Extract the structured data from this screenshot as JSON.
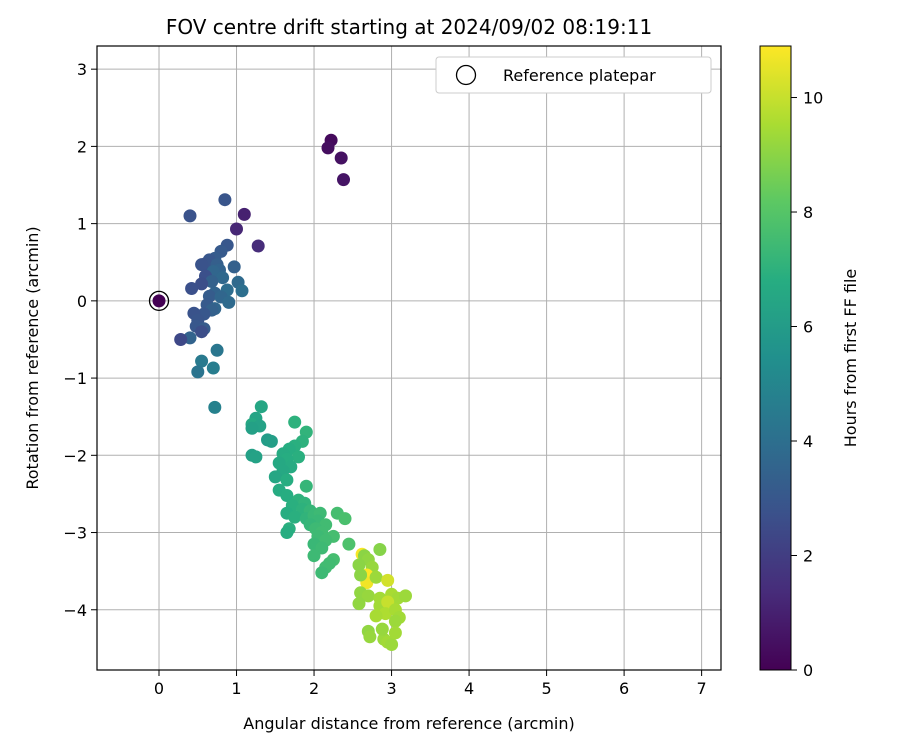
{
  "chart_data": {
    "type": "scatter",
    "title": "FOV centre drift starting at 2024/09/02 08:19:11",
    "xlabel": "Angular distance from reference (arcmin)",
    "ylabel": "Rotation from reference (arcmin)",
    "xlim": [
      -0.8,
      7.25
    ],
    "ylim": [
      -4.78,
      3.3
    ],
    "xticks": [
      0,
      1,
      2,
      3,
      4,
      5,
      6,
      7
    ],
    "yticks": [
      3,
      2,
      1,
      0,
      -1,
      -2,
      -3,
      -4
    ],
    "xtick_labels": [
      "0",
      "1",
      "2",
      "3",
      "4",
      "5",
      "6",
      "7"
    ],
    "ytick_labels": [
      "3",
      "2",
      "1",
      "0",
      "−1",
      "−2",
      "−3",
      "−4"
    ],
    "grid": true,
    "legend": {
      "label": "Reference platepar",
      "placement": "top-right"
    },
    "reference_point": {
      "x": 0.0,
      "y": 0.0,
      "hours": 0.0
    },
    "colorbar": {
      "label": "Hours from first FF file",
      "range": [
        0,
        10.9
      ],
      "ticks": [
        0,
        2,
        4,
        6,
        8,
        10
      ],
      "tick_labels": [
        "0",
        "2",
        "4",
        "6",
        "8",
        "10"
      ],
      "colormap": "viridis"
    },
    "points": [
      [
        2.22,
        2.08,
        0.3
      ],
      [
        2.18,
        1.98,
        0.4
      ],
      [
        2.35,
        1.85,
        0.5
      ],
      [
        2.38,
        1.57,
        0.6
      ],
      [
        1.1,
        1.12,
        1.0
      ],
      [
        1.0,
        0.93,
        1.2
      ],
      [
        1.28,
        0.71,
        1.4
      ],
      [
        0.4,
        1.1,
        2.8
      ],
      [
        0.85,
        1.31,
        2.9
      ],
      [
        0.88,
        0.72,
        3.0
      ],
      [
        0.8,
        0.64,
        3.1
      ],
      [
        0.72,
        0.55,
        3.2
      ],
      [
        0.65,
        0.53,
        3.0
      ],
      [
        0.6,
        0.48,
        2.9
      ],
      [
        0.55,
        0.47,
        2.8
      ],
      [
        0.75,
        0.47,
        3.3
      ],
      [
        0.97,
        0.44,
        3.4
      ],
      [
        0.78,
        0.4,
        3.5
      ],
      [
        0.7,
        0.38,
        3.6
      ],
      [
        0.6,
        0.32,
        2.7
      ],
      [
        0.82,
        0.3,
        3.7
      ],
      [
        0.68,
        0.25,
        3.4
      ],
      [
        1.02,
        0.24,
        3.8
      ],
      [
        0.55,
        0.22,
        2.6
      ],
      [
        0.42,
        0.16,
        2.7
      ],
      [
        0.88,
        0.14,
        3.9
      ],
      [
        1.07,
        0.13,
        4.0
      ],
      [
        0.72,
        0.1,
        3.5
      ],
      [
        0.65,
        0.06,
        3.2
      ],
      [
        0.8,
        0.05,
        3.6
      ],
      [
        0.9,
        -0.02,
        3.8
      ],
      [
        0.62,
        -0.05,
        3.1
      ],
      [
        0.72,
        -0.1,
        3.6
      ],
      [
        0.68,
        -0.12,
        3.4
      ],
      [
        0.58,
        -0.17,
        3.0
      ],
      [
        0.45,
        -0.16,
        2.8
      ],
      [
        0.5,
        -0.25,
        2.9
      ],
      [
        0.48,
        -0.33,
        3.0
      ],
      [
        0.58,
        -0.36,
        3.2
      ],
      [
        0.55,
        -0.4,
        2.6
      ],
      [
        0.4,
        -0.48,
        3.5
      ],
      [
        0.28,
        -0.5,
        2.4
      ],
      [
        0.75,
        -0.64,
        4.3
      ],
      [
        0.55,
        -0.78,
        4.5
      ],
      [
        0.7,
        -0.87,
        4.6
      ],
      [
        0.5,
        -0.92,
        4.2
      ],
      [
        0.72,
        -1.38,
        4.8
      ],
      [
        1.32,
        -1.37,
        6.5
      ],
      [
        1.25,
        -1.52,
        6.4
      ],
      [
        1.2,
        -1.6,
        6.6
      ],
      [
        1.3,
        -1.62,
        6.3
      ],
      [
        1.2,
        -1.65,
        6.2
      ],
      [
        1.4,
        -1.8,
        6.0
      ],
      [
        1.45,
        -1.82,
        6.1
      ],
      [
        1.75,
        -1.57,
        7.0
      ],
      [
        1.9,
        -1.7,
        7.1
      ],
      [
        1.85,
        -1.82,
        7.0
      ],
      [
        1.75,
        -1.88,
        6.9
      ],
      [
        1.68,
        -1.92,
        6.8
      ],
      [
        1.6,
        -1.98,
        6.7
      ],
      [
        1.2,
        -2.0,
        6.2
      ],
      [
        1.25,
        -2.02,
        6.3
      ],
      [
        1.8,
        -2.02,
        6.9
      ],
      [
        1.65,
        -2.05,
        6.8
      ],
      [
        1.55,
        -2.1,
        6.6
      ],
      [
        1.7,
        -2.15,
        6.7
      ],
      [
        1.6,
        -2.2,
        6.6
      ],
      [
        1.5,
        -2.28,
        6.5
      ],
      [
        1.65,
        -2.32,
        6.8
      ],
      [
        1.9,
        -2.4,
        7.2
      ],
      [
        1.55,
        -2.45,
        6.7
      ],
      [
        1.65,
        -2.52,
        6.8
      ],
      [
        1.8,
        -2.58,
        7.0
      ],
      [
        1.88,
        -2.62,
        7.1
      ],
      [
        1.72,
        -2.65,
        6.9
      ],
      [
        1.85,
        -2.7,
        7.0
      ],
      [
        1.95,
        -2.72,
        7.2
      ],
      [
        1.65,
        -2.75,
        6.8
      ],
      [
        1.75,
        -2.8,
        6.9
      ],
      [
        1.9,
        -2.82,
        7.1
      ],
      [
        2.0,
        -2.78,
        7.3
      ],
      [
        2.08,
        -2.75,
        7.4
      ],
      [
        2.3,
        -2.75,
        7.6
      ],
      [
        2.4,
        -2.82,
        7.7
      ],
      [
        2.05,
        -2.85,
        7.3
      ],
      [
        1.95,
        -2.9,
        7.2
      ],
      [
        2.15,
        -2.9,
        7.5
      ],
      [
        2.02,
        -2.95,
        7.4
      ],
      [
        1.68,
        -2.95,
        6.9
      ],
      [
        2.1,
        -3.0,
        7.5
      ],
      [
        1.65,
        -3.0,
        6.8
      ],
      [
        2.25,
        -3.05,
        7.6
      ],
      [
        2.05,
        -3.05,
        7.4
      ],
      [
        2.15,
        -3.1,
        7.5
      ],
      [
        2.45,
        -3.15,
        7.8
      ],
      [
        2.0,
        -3.15,
        7.3
      ],
      [
        2.1,
        -3.2,
        7.4
      ],
      [
        2.0,
        -3.3,
        7.4
      ],
      [
        2.25,
        -3.35,
        7.6
      ],
      [
        2.2,
        -3.4,
        7.5
      ],
      [
        2.15,
        -3.45,
        7.5
      ],
      [
        2.1,
        -3.52,
        7.4
      ],
      [
        2.62,
        -3.28,
        10.8
      ],
      [
        2.65,
        -3.3,
        9.0
      ],
      [
        2.85,
        -3.22,
        8.9
      ],
      [
        2.7,
        -3.35,
        9.1
      ],
      [
        2.75,
        -3.45,
        9.2
      ],
      [
        2.58,
        -3.42,
        9.0
      ],
      [
        2.68,
        -3.55,
        10.9
      ],
      [
        2.7,
        -3.6,
        10.9
      ],
      [
        2.68,
        -3.65,
        10.7
      ],
      [
        2.6,
        -3.55,
        9.0
      ],
      [
        2.8,
        -3.58,
        9.3
      ],
      [
        2.95,
        -3.62,
        10.2
      ],
      [
        2.6,
        -3.78,
        9.1
      ],
      [
        2.7,
        -3.82,
        9.2
      ],
      [
        2.85,
        -3.85,
        9.4
      ],
      [
        3.0,
        -3.8,
        9.5
      ],
      [
        3.08,
        -3.85,
        9.4
      ],
      [
        3.18,
        -3.82,
        9.3
      ],
      [
        2.58,
        -3.92,
        9.1
      ],
      [
        2.85,
        -3.95,
        9.4
      ],
      [
        2.95,
        -3.9,
        10.0
      ],
      [
        2.92,
        -4.05,
        9.6
      ],
      [
        3.05,
        -4.0,
        9.5
      ],
      [
        3.1,
        -4.1,
        9.4
      ],
      [
        3.05,
        -4.15,
        9.3
      ],
      [
        2.8,
        -4.08,
        9.5
      ],
      [
        2.7,
        -4.28,
        9.1
      ],
      [
        2.72,
        -4.35,
        9.2
      ],
      [
        2.9,
        -4.38,
        9.3
      ],
      [
        2.95,
        -4.42,
        9.4
      ],
      [
        3.0,
        -4.45,
        9.3
      ],
      [
        3.05,
        -4.3,
        9.4
      ],
      [
        2.88,
        -4.25,
        9.2
      ]
    ]
  }
}
